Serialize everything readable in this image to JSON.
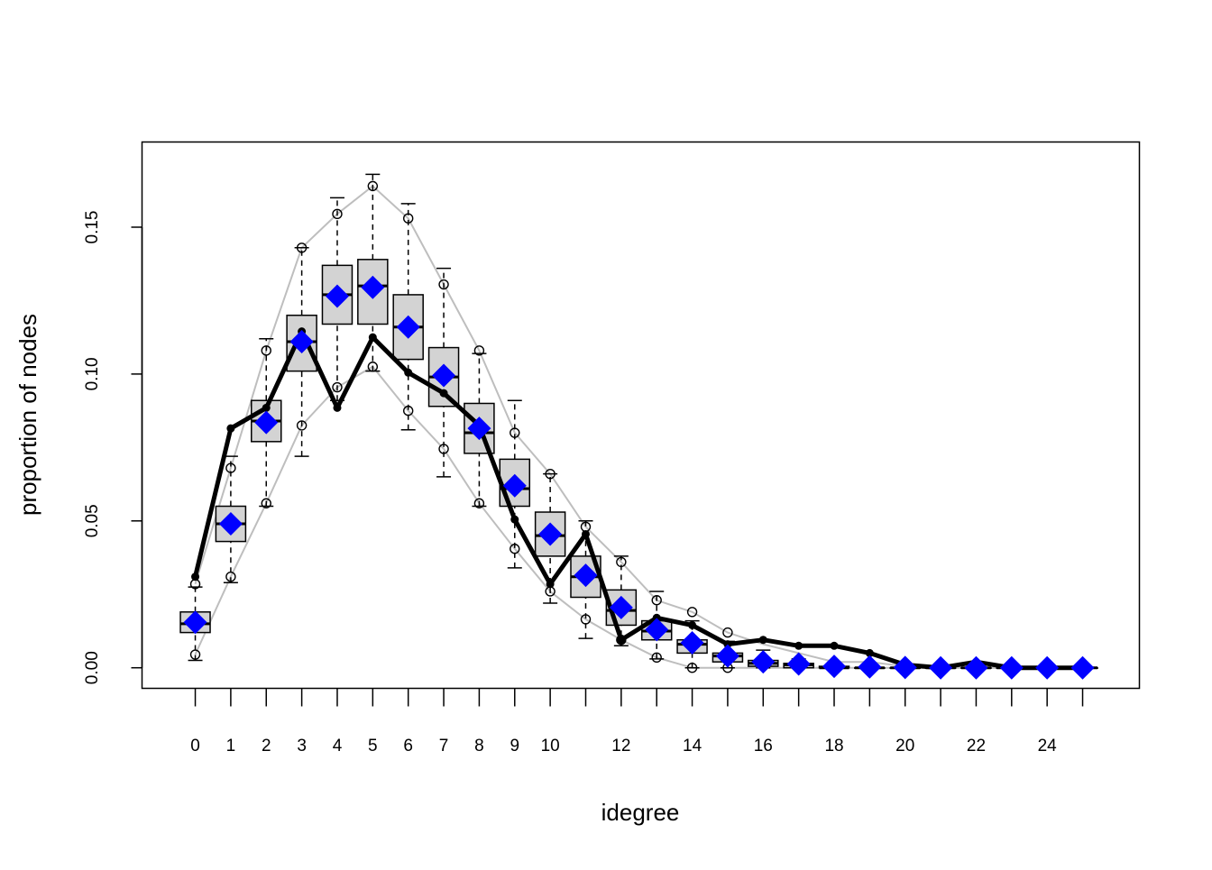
{
  "chart_data": {
    "type": "box",
    "title": "",
    "xlabel": "idegree",
    "ylabel": "proportion of nodes",
    "x_ticks": [
      0,
      1,
      2,
      3,
      4,
      5,
      6,
      7,
      8,
      9,
      10,
      12,
      14,
      16,
      18,
      20,
      22,
      24
    ],
    "y_ticks": [
      0.0,
      0.05,
      0.1,
      0.15
    ],
    "y_tick_labels": [
      "0.00",
      "0.05",
      "0.10",
      "0.15"
    ],
    "ylim": [
      -0.007,
      0.179
    ],
    "xlim": [
      -1.5,
      26.6
    ],
    "grid": false,
    "colors": {
      "box_fill": "#d3d3d3",
      "observed": "#000000",
      "mean_marker": "#0000ff",
      "bounds": "#bebebe"
    },
    "x": [
      0,
      1,
      2,
      3,
      4,
      5,
      6,
      7,
      8,
      9,
      10,
      11,
      12,
      13,
      14,
      15,
      16,
      17,
      18,
      19,
      20,
      21,
      22,
      23,
      24,
      25
    ],
    "box_stats": [
      {
        "whisker_low": 0.0025,
        "q1": 0.012,
        "median": 0.015,
        "q3": 0.019,
        "whisker_high": 0.0275
      },
      {
        "whisker_low": 0.029,
        "q1": 0.043,
        "median": 0.049,
        "q3": 0.055,
        "whisker_high": 0.072
      },
      {
        "whisker_low": 0.055,
        "q1": 0.077,
        "median": 0.084,
        "q3": 0.091,
        "whisker_high": 0.112
      },
      {
        "whisker_low": 0.072,
        "q1": 0.101,
        "median": 0.111,
        "q3": 0.12,
        "whisker_high": 0.143
      },
      {
        "whisker_low": 0.091,
        "q1": 0.117,
        "median": 0.127,
        "q3": 0.137,
        "whisker_high": 0.16
      },
      {
        "whisker_low": 0.101,
        "q1": 0.117,
        "median": 0.13,
        "q3": 0.139,
        "whisker_high": 0.168
      },
      {
        "whisker_low": 0.081,
        "q1": 0.105,
        "median": 0.116,
        "q3": 0.127,
        "whisker_high": 0.158
      },
      {
        "whisker_low": 0.065,
        "q1": 0.089,
        "median": 0.099,
        "q3": 0.109,
        "whisker_high": 0.136
      },
      {
        "whisker_low": 0.055,
        "q1": 0.073,
        "median": 0.08,
        "q3": 0.09,
        "whisker_high": 0.107
      },
      {
        "whisker_low": 0.034,
        "q1": 0.055,
        "median": 0.061,
        "q3": 0.071,
        "whisker_high": 0.091
      },
      {
        "whisker_low": 0.022,
        "q1": 0.038,
        "median": 0.045,
        "q3": 0.053,
        "whisker_high": 0.066
      },
      {
        "whisker_low": 0.01,
        "q1": 0.024,
        "median": 0.031,
        "q3": 0.038,
        "whisker_high": 0.05
      },
      {
        "whisker_low": 0.0075,
        "q1": 0.0145,
        "median": 0.0195,
        "q3": 0.0265,
        "whisker_high": 0.038
      },
      {
        "whisker_low": 0.003,
        "q1": 0.0095,
        "median": 0.0125,
        "q3": 0.016,
        "whisker_high": 0.026
      },
      {
        "whisker_low": 0.0,
        "q1": 0.005,
        "median": 0.008,
        "q3": 0.0095,
        "whisker_high": 0.016
      },
      {
        "whisker_low": 0.0,
        "q1": 0.002,
        "median": 0.004,
        "q3": 0.005,
        "whisker_high": 0.009
      },
      {
        "whisker_low": 0.0,
        "q1": 0.0005,
        "median": 0.0015,
        "q3": 0.0025,
        "whisker_high": 0.006
      },
      {
        "whisker_low": 0.0,
        "q1": 0.0,
        "median": 0.001,
        "q3": 0.0015,
        "whisker_high": 0.003
      },
      {
        "whisker_low": 0.0,
        "q1": 0.0,
        "median": 0.0,
        "q3": 0.0005,
        "whisker_high": 0.001
      },
      {
        "whisker_low": 0.0,
        "q1": 0.0,
        "median": 0.0,
        "q3": 0.0,
        "whisker_high": 0.0005
      },
      {
        "whisker_low": 0.0,
        "q1": 0.0,
        "median": 0.0,
        "q3": 0.0,
        "whisker_high": 0.0
      },
      {
        "whisker_low": 0.0,
        "q1": 0.0,
        "median": 0.0,
        "q3": 0.0,
        "whisker_high": 0.0
      },
      {
        "whisker_low": 0.0,
        "q1": 0.0,
        "median": 0.0,
        "q3": 0.0,
        "whisker_high": 0.0
      },
      {
        "whisker_low": 0.0,
        "q1": 0.0,
        "median": 0.0,
        "q3": 0.0,
        "whisker_high": 0.0
      },
      {
        "whisker_low": 0.0,
        "q1": 0.0,
        "median": 0.0,
        "q3": 0.0,
        "whisker_high": 0.0
      },
      {
        "whisker_low": 0.0,
        "q1": 0.0,
        "median": 0.0,
        "q3": 0.0,
        "whisker_high": 0.0
      }
    ],
    "lower_bound": [
      0.0045,
      0.031,
      0.056,
      0.0825,
      0.0955,
      0.1025,
      0.0875,
      0.0745,
      0.056,
      0.0405,
      0.026,
      0.0165,
      0.0095,
      0.0035,
      0.0,
      0.0,
      0.0,
      0.0,
      0.0,
      0.0,
      0.0,
      0.0,
      0.0,
      0.0,
      0.0,
      0.0
    ],
    "upper_bound": [
      0.0285,
      0.068,
      0.108,
      0.143,
      0.1545,
      0.164,
      0.153,
      0.1305,
      0.108,
      0.08,
      0.066,
      0.048,
      0.036,
      0.023,
      0.019,
      0.012,
      0.008,
      0.005,
      0.002,
      0.002,
      0.0005,
      0.0,
      0.0,
      0.0,
      0.0,
      0.0
    ],
    "observed": [
      0.031,
      0.0815,
      0.0885,
      0.1145,
      0.0885,
      0.1125,
      0.1005,
      0.0935,
      0.0825,
      0.0505,
      0.0285,
      0.0455,
      0.0095,
      0.017,
      0.0145,
      0.008,
      0.0095,
      0.0075,
      0.0075,
      0.005,
      0.001,
      0.0,
      0.002,
      0.0,
      0.0,
      0.0
    ],
    "mean": [
      0.0155,
      0.049,
      0.0835,
      0.111,
      0.1265,
      0.1295,
      0.116,
      0.0995,
      0.0815,
      0.062,
      0.0455,
      0.0315,
      0.0205,
      0.013,
      0.0085,
      0.004,
      0.002,
      0.0013,
      0.0005,
      0.0003,
      0.0001,
      0.0,
      0.0,
      0.0,
      0.0,
      0.0
    ]
  }
}
